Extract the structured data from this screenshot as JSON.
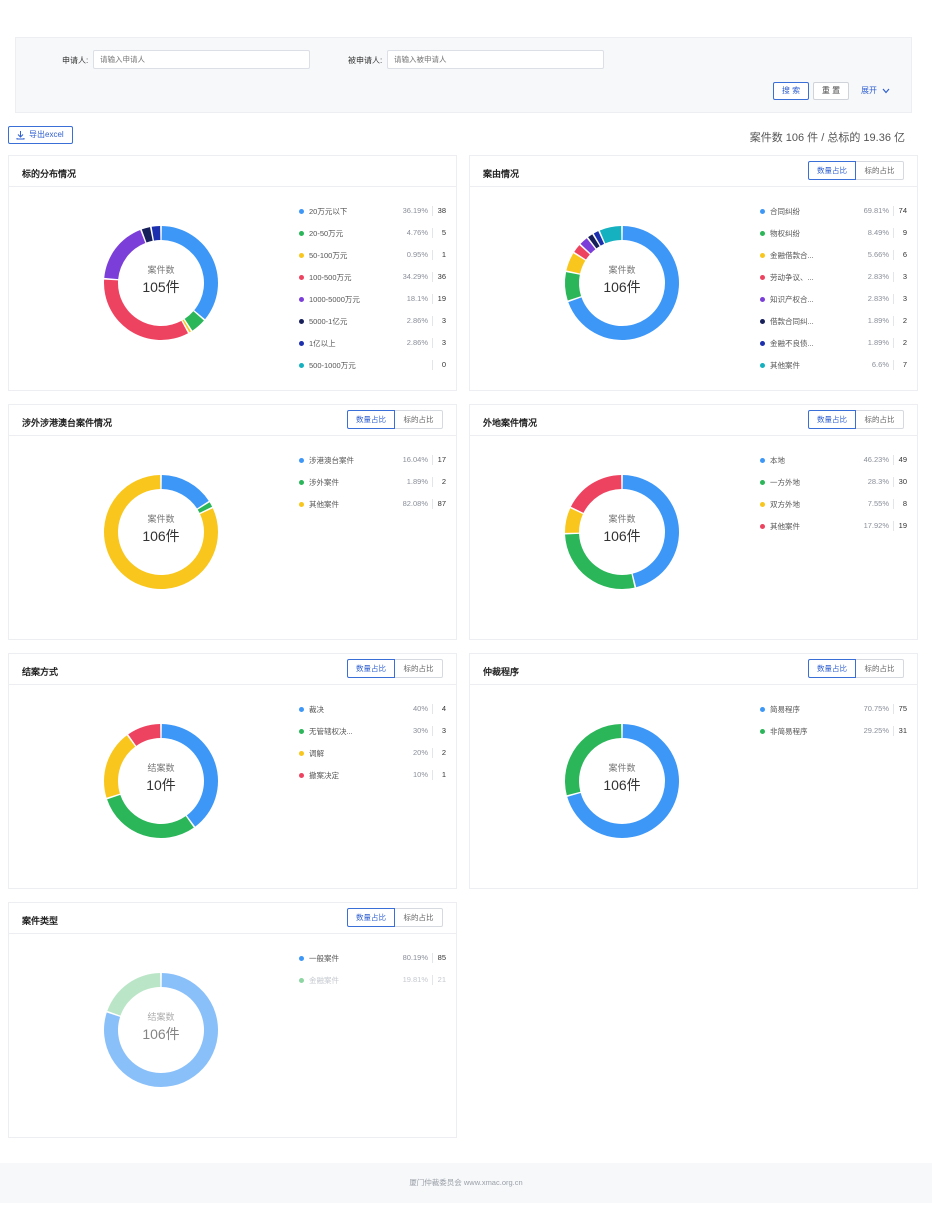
{
  "search": {
    "applicant_label": "申请人:",
    "applicant_placeholder": "请输入申请人",
    "respondent_label": "被申请人:",
    "respondent_placeholder": "请输入被申请人",
    "search_btn": "搜 索",
    "reset_btn": "重 置",
    "expand": "展开"
  },
  "toolbar": {
    "export_label": "导出excel",
    "summary": "案件数 106 件 / 总标的 19.36 亿"
  },
  "toggle": {
    "count": "数量占比",
    "amount": "标的占比"
  },
  "colors": {
    "blue": "#3d97f7",
    "green": "#2ab659",
    "yellow": "#f8c61c",
    "red": "#ee4360",
    "purple": "#7b3ed8",
    "navy": "#17205a",
    "darkblue": "#1c2fae",
    "teal": "#16b1c0",
    "lightblue": "#93c4f9",
    "lightgreen": "#8dd6a3"
  },
  "cards": [
    {
      "title": "标的分布情况",
      "center_label": "案件数",
      "center_value": "105件",
      "legend": [
        {
          "name": "20万元以下",
          "pct": "36.19%",
          "count": "38",
          "color": "#3d97f7"
        },
        {
          "name": "20-50万元",
          "pct": "4.76%",
          "count": "5",
          "color": "#2ab659"
        },
        {
          "name": "50-100万元",
          "pct": "0.95%",
          "count": "1",
          "color": "#f8c61c"
        },
        {
          "name": "100-500万元",
          "pct": "34.29%",
          "count": "36",
          "color": "#ee4360"
        },
        {
          "name": "1000-5000万元",
          "pct": "18.1%",
          "count": "19",
          "color": "#7b3ed8"
        },
        {
          "name": "5000-1亿元",
          "pct": "2.86%",
          "count": "3",
          "color": "#17205a"
        },
        {
          "name": "1亿以上",
          "pct": "2.86%",
          "count": "3",
          "color": "#1c2fae"
        },
        {
          "name": "500-1000万元",
          "pct": "",
          "count": "0",
          "color": "#16b1c0"
        }
      ]
    },
    {
      "title": "案由情况",
      "center_label": "案件数",
      "center_value": "106件",
      "legend": [
        {
          "name": "合同纠纷",
          "pct": "69.81%",
          "count": "74",
          "color": "#3d97f7"
        },
        {
          "name": "物权纠纷",
          "pct": "8.49%",
          "count": "9",
          "color": "#2ab659"
        },
        {
          "name": "金融借款合...",
          "pct": "5.66%",
          "count": "6",
          "color": "#f8c61c"
        },
        {
          "name": "劳动争议、...",
          "pct": "2.83%",
          "count": "3",
          "color": "#ee4360"
        },
        {
          "name": "知识产权合...",
          "pct": "2.83%",
          "count": "3",
          "color": "#7b3ed8"
        },
        {
          "name": "借款合同纠...",
          "pct": "1.89%",
          "count": "2",
          "color": "#17205a"
        },
        {
          "name": "金融不良债...",
          "pct": "1.89%",
          "count": "2",
          "color": "#1c2fae"
        },
        {
          "name": "其他案件",
          "pct": "6.6%",
          "count": "7",
          "color": "#16b1c0"
        }
      ]
    },
    {
      "title": "涉外涉港澳台案件情况",
      "center_label": "案件数",
      "center_value": "106件",
      "legend": [
        {
          "name": "涉港澳台案件",
          "pct": "16.04%",
          "count": "17",
          "color": "#3d97f7"
        },
        {
          "name": "涉外案件",
          "pct": "1.89%",
          "count": "2",
          "color": "#2ab659"
        },
        {
          "name": "其他案件",
          "pct": "82.08%",
          "count": "87",
          "color": "#f8c61c"
        }
      ]
    },
    {
      "title": "外地案件情况",
      "center_label": "案件数",
      "center_value": "106件",
      "legend": [
        {
          "name": "本地",
          "pct": "46.23%",
          "count": "49",
          "color": "#3d97f7"
        },
        {
          "name": "一方外地",
          "pct": "28.3%",
          "count": "30",
          "color": "#2ab659"
        },
        {
          "name": "双方外地",
          "pct": "7.55%",
          "count": "8",
          "color": "#f8c61c"
        },
        {
          "name": "其他案件",
          "pct": "17.92%",
          "count": "19",
          "color": "#ee4360"
        }
      ]
    },
    {
      "title": "结案方式",
      "center_label": "结案数",
      "center_value": "10件",
      "legend": [
        {
          "name": "裁决",
          "pct": "40%",
          "count": "4",
          "color": "#3d97f7"
        },
        {
          "name": "无管辖权决...",
          "pct": "30%",
          "count": "3",
          "color": "#2ab659"
        },
        {
          "name": "调解",
          "pct": "20%",
          "count": "2",
          "color": "#f8c61c"
        },
        {
          "name": "撤案决定",
          "pct": "10%",
          "count": "1",
          "color": "#ee4360"
        }
      ]
    },
    {
      "title": "仲裁程序",
      "center_label": "案件数",
      "center_value": "106件",
      "legend": [
        {
          "name": "简易程序",
          "pct": "70.75%",
          "count": "75",
          "color": "#3d97f7"
        },
        {
          "name": "非简易程序",
          "pct": "29.25%",
          "count": "31",
          "color": "#2ab659"
        }
      ]
    },
    {
      "title": "案件类型",
      "center_label": "结案数",
      "center_value": "106件",
      "legend": [
        {
          "name": "一般案件",
          "pct": "80.19%",
          "count": "85",
          "color": "#3d97f7"
        },
        {
          "name": "金融案件",
          "pct": "19.81%",
          "count": "21",
          "color": "#8dd6a3",
          "faded": true
        }
      ]
    }
  ],
  "footer": {
    "text": "厦门仲裁委员会 www.xmac.org.cn"
  }
}
